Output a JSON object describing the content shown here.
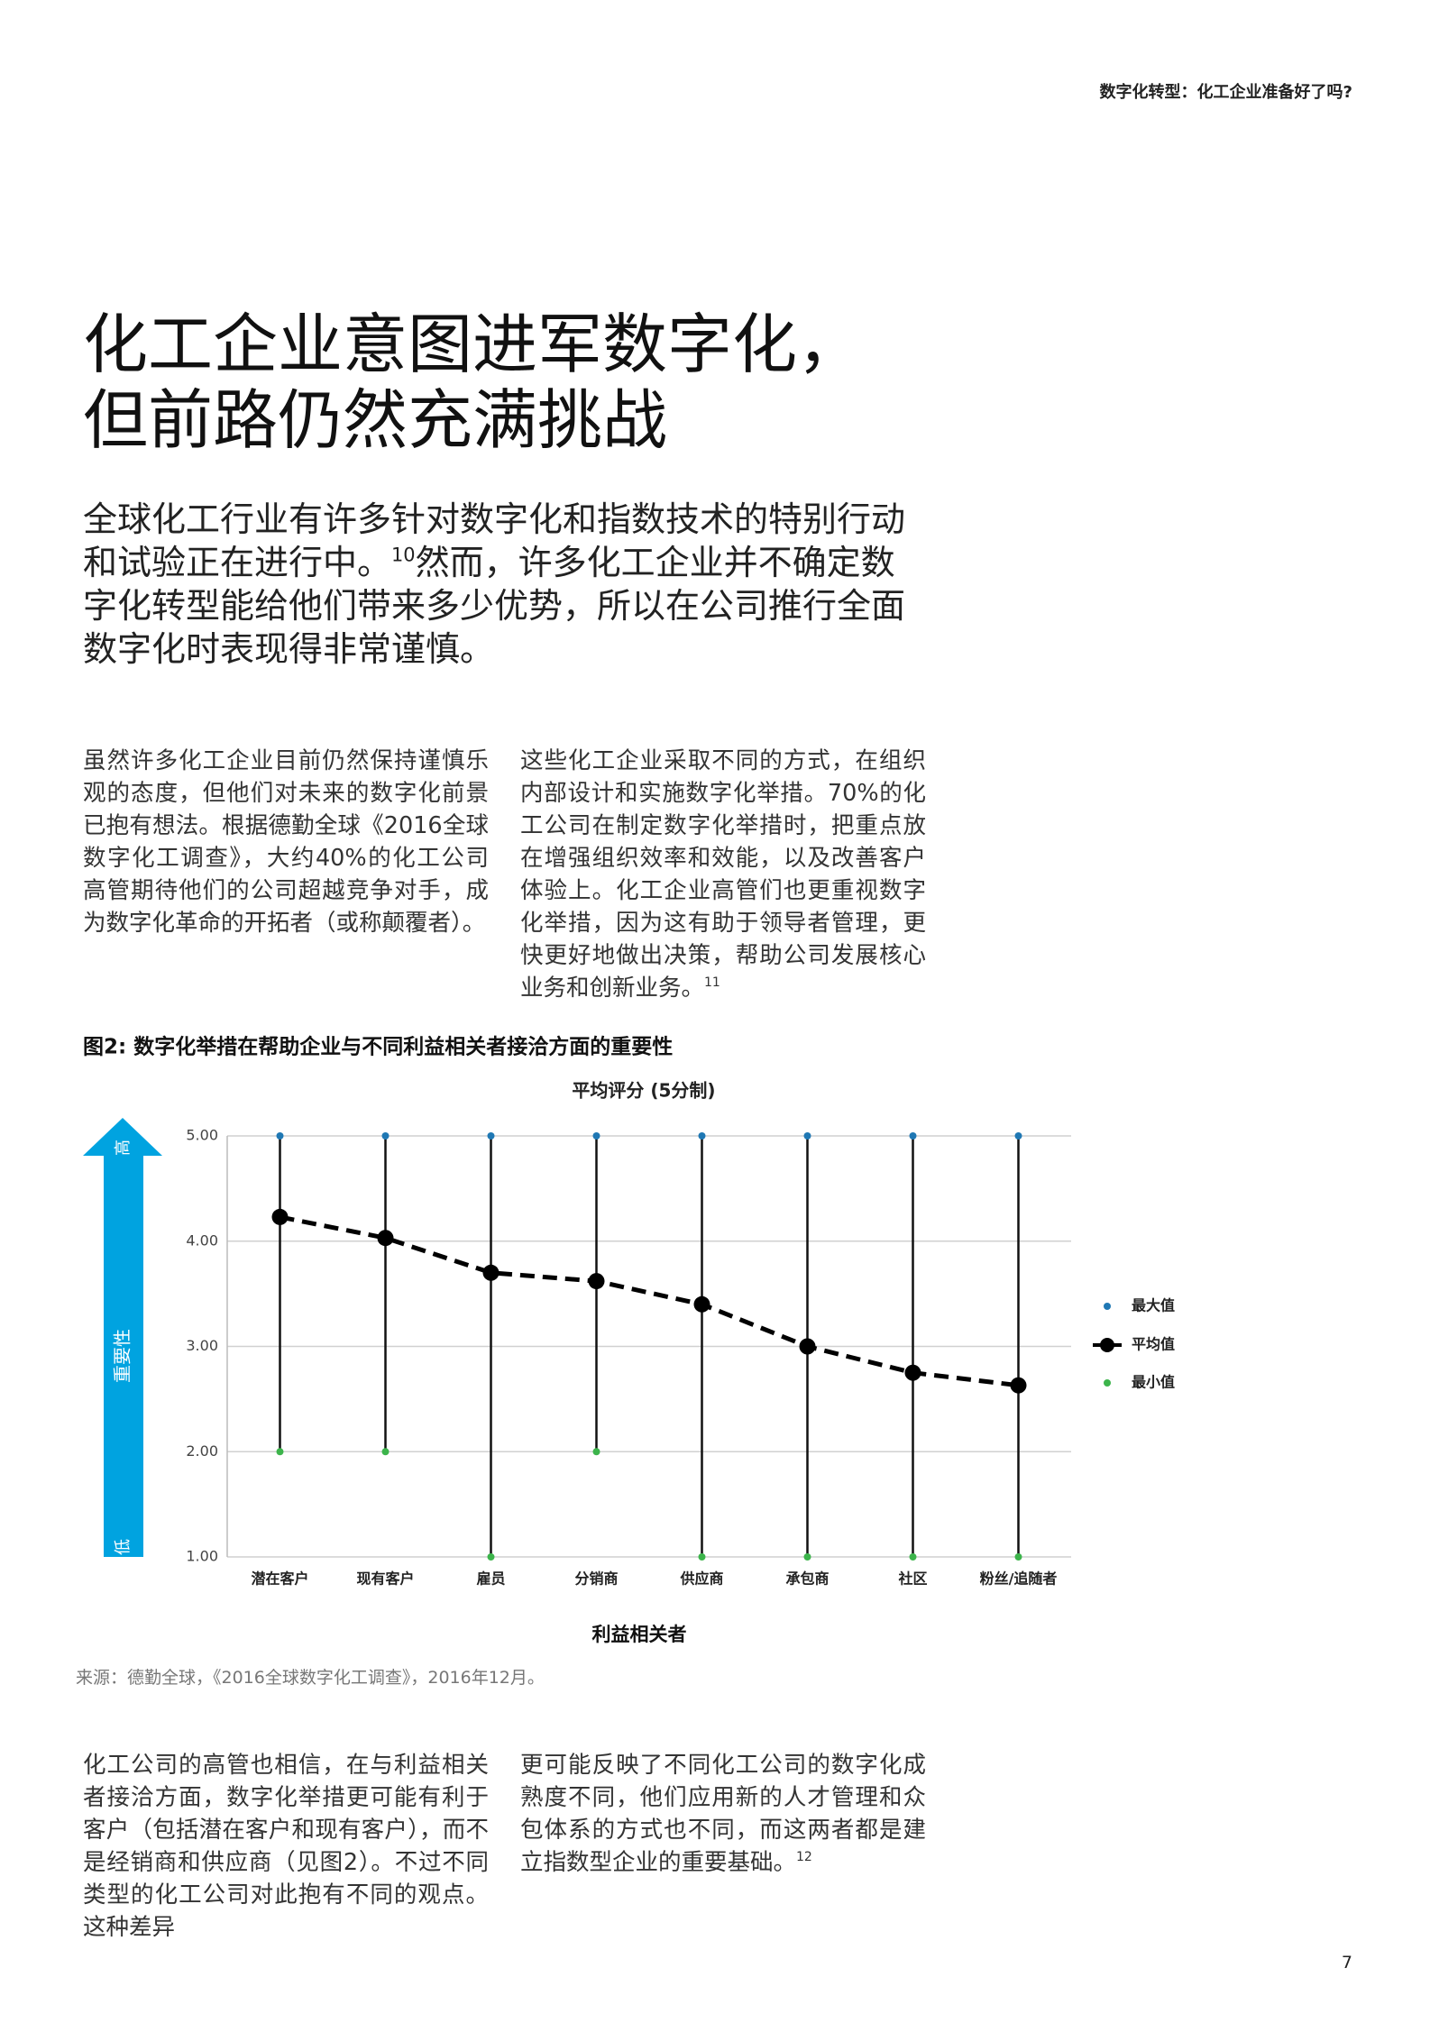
{
  "header": "数字化转型：化工企业准备好了吗?",
  "title": [
    "化工企业意图进军数字化，",
    "但前路仍然充满挑战"
  ],
  "lead": [
    "全球化工行业有许多针对数字化和指数技术的特别行动和试验正在进行中。",
    "10",
    "然而，许多化工企业并不确定数字化转型能给他们带来多少优势，所以在公司推行全面数字化时表现得非常谨慎。"
  ],
  "columns": [
    [
      "虽然许多化工企业目前仍然保持谨慎乐观的态度，但他们对未来的数字化前景已抱有想法。根据德勤全球《2016全球数字化工调查》，大约40%的化工公司高管期待他们的公司超越竞争对手，成为数字化革命的开拓者（或称颠覆者）。"
    ],
    [
      "这些化工企业采取不同的方式，在组织内部设计和实施数字化举措。70%的化工公司在制定数字化举措时，把重点放在增强组织效率和效能，以及改善客户体验上。化工企业高管们也更重视数字化举措，因为这有助于领导者管理，更快更好地做出决策，帮助公司发展核心业务和创新业务。",
      "11"
    ]
  ],
  "chart_data": {
    "type": "range-line",
    "title": "图2: 数字化举措在帮助企业与不同利益相关者接洽方面的重要性",
    "subtitle": "平均评分 (5分制)",
    "x_label": "利益相关者",
    "y_label": "重要性",
    "y_high": "高",
    "y_low": "低",
    "categories": [
      "潜在客户",
      "现有客户",
      "雇员",
      "分销商",
      "供应商",
      "承包商",
      "社区",
      "粉丝/追随者"
    ],
    "series": [
      {
        "name": "最大值",
        "color": "#1f78b4",
        "values": [
          5,
          5,
          5,
          5,
          5,
          5,
          5,
          5
        ]
      },
      {
        "name": "平均值",
        "color": "#000000",
        "values": [
          4.23,
          4.03,
          3.7,
          3.62,
          3.4,
          3.0,
          2.75,
          2.63
        ]
      },
      {
        "name": "最小值",
        "color": "#3cb44b",
        "values": [
          2,
          2,
          1,
          2,
          1,
          1,
          1,
          1
        ]
      }
    ],
    "ylim": [
      1,
      5
    ],
    "yticks": [
      {
        "value": 1,
        "label": "1.00"
      },
      {
        "value": 2,
        "label": "2.00"
      },
      {
        "value": 3,
        "label": "3.00"
      },
      {
        "value": 4,
        "label": "4.00"
      },
      {
        "value": 5,
        "label": "5.00"
      }
    ],
    "grid": true,
    "arrow_color": "#00a3e0"
  },
  "source": "来源：德勤全球，《2016全球数字化工调查》，2016年12月。",
  "bottom_columns": [
    [
      "化工公司的高管也相信，在与利益相关者接洽方面，数字化举措更可能有利于客户（包括潜在客户和现有客户），而不是经销商和供应商（见图2）。不过不同类型的化工公司对此抱有不同的观点。这种差异"
    ],
    [
      "更可能反映了不同化工公司的数字化成熟度不同，他们应用新的人才管理和众包体系的方式也不同，而这两者都是建立指数型企业的重要基础。",
      "12"
    ]
  ],
  "page_number": "7"
}
